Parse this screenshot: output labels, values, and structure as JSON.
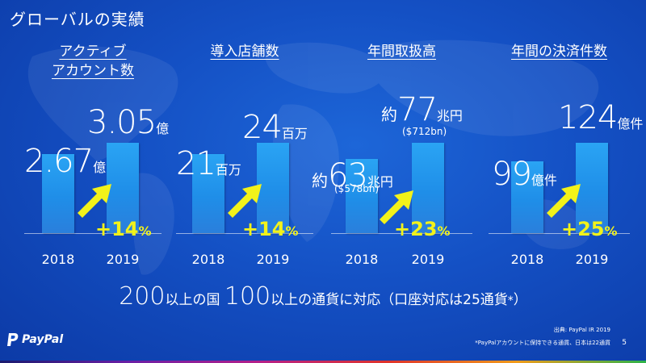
{
  "title": "グローバルの実績",
  "chart_data": [
    {
      "type": "bar",
      "title": "アクティブアカウント数",
      "title_lines": [
        "アクティブ",
        "アカウント数"
      ],
      "categories": [
        "2018",
        "2019"
      ],
      "values": [
        2.67,
        3.05
      ],
      "value_labels": [
        {
          "prefix": "",
          "num": "2.67",
          "unit": "億",
          "sub": ""
        },
        {
          "prefix": "",
          "num": "3.05",
          "unit": "億",
          "sub": ""
        }
      ],
      "growth": "+14",
      "growth_unit": "%"
    },
    {
      "type": "bar",
      "title": "導入店舗数",
      "title_lines": [
        "導入店舗数"
      ],
      "categories": [
        "2018",
        "2019"
      ],
      "values": [
        21,
        24
      ],
      "value_labels": [
        {
          "prefix": "",
          "num": "21",
          "unit": "百万",
          "sub": ""
        },
        {
          "prefix": "",
          "num": "24",
          "unit": "百万",
          "sub": ""
        }
      ],
      "growth": "+14",
      "growth_unit": "%"
    },
    {
      "type": "bar",
      "title": "年間取扱高",
      "title_lines": [
        "年間取扱高"
      ],
      "categories": [
        "2018",
        "2019"
      ],
      "values": [
        63,
        77
      ],
      "value_labels": [
        {
          "prefix": "約",
          "num": "63",
          "unit": "兆円",
          "sub": "($578bn)"
        },
        {
          "prefix": "約",
          "num": "77",
          "unit": "兆円",
          "sub": "($712bn)"
        }
      ],
      "growth": "+23",
      "growth_unit": "%"
    },
    {
      "type": "bar",
      "title": "年間の決済件数",
      "title_lines": [
        "年間の決済件数"
      ],
      "categories": [
        "2018",
        "2019"
      ],
      "values": [
        99,
        124
      ],
      "value_labels": [
        {
          "prefix": "",
          "num": "99",
          "unit": "億件",
          "sub": ""
        },
        {
          "prefix": "",
          "num": "124",
          "unit": "億件",
          "sub": ""
        }
      ],
      "growth": "+25",
      "growth_unit": "%"
    }
  ],
  "footer": {
    "num1": "200",
    "text1": "以上の国",
    "num2": "100",
    "text2": "以上の通貨に対応（口座対応は25通貨",
    "asterisk": "*",
    "close": "）"
  },
  "logo": {
    "text": "PayPal"
  },
  "source": "出典: PayPal IR 2019",
  "note": "*PayPalアカウントに保持できる通貨、日本は22通貨",
  "page_number": "5",
  "colors": {
    "accent_yellow": "#f2f21a",
    "bar": "#2196ee",
    "background": "#1450c4"
  }
}
